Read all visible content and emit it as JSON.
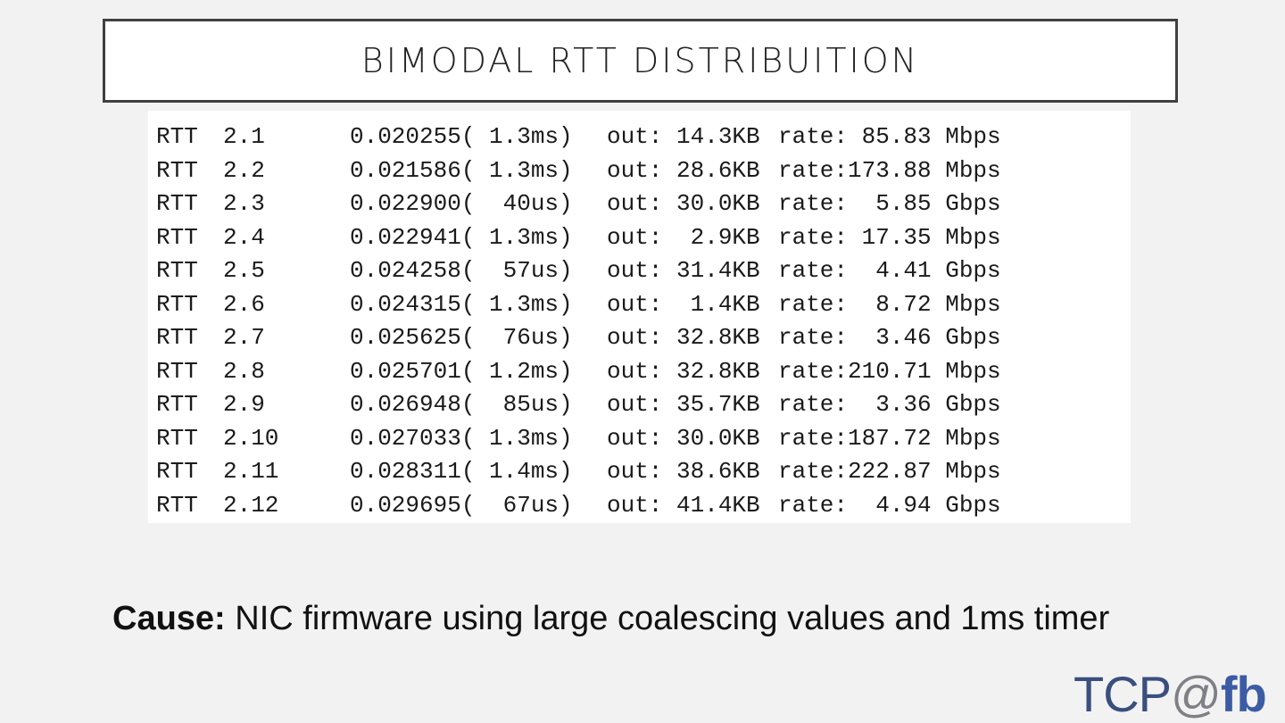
{
  "title": "BIMODAL RTT DISTRIBUITION",
  "rows": [
    [
      "RTT",
      "2.1",
      "0.020255( 1.3ms)",
      "out: 14.3KB",
      "rate: 85.83 Mbps"
    ],
    [
      "RTT",
      "2.2",
      "0.021586( 1.3ms)",
      "out: 28.6KB",
      "rate:173.88 Mbps"
    ],
    [
      "RTT",
      "2.3",
      "0.022900(  40us)",
      "out: 30.0KB",
      "rate:  5.85 Gbps"
    ],
    [
      "RTT",
      "2.4",
      "0.022941( 1.3ms)",
      "out:  2.9KB",
      "rate: 17.35 Mbps"
    ],
    [
      "RTT",
      "2.5",
      "0.024258(  57us)",
      "out: 31.4KB",
      "rate:  4.41 Gbps"
    ],
    [
      "RTT",
      "2.6",
      "0.024315( 1.3ms)",
      "out:  1.4KB",
      "rate:  8.72 Mbps"
    ],
    [
      "RTT",
      "2.7",
      "0.025625(  76us)",
      "out: 32.8KB",
      "rate:  3.46 Gbps"
    ],
    [
      "RTT",
      "2.8",
      "0.025701( 1.2ms)",
      "out: 32.8KB",
      "rate:210.71 Mbps"
    ],
    [
      "RTT",
      "2.9",
      "0.026948(  85us)",
      "out: 35.7KB",
      "rate:  3.36 Gbps"
    ],
    [
      "RTT",
      "2.10",
      "0.027033( 1.3ms)",
      "out: 30.0KB",
      "rate:187.72 Mbps"
    ],
    [
      "RTT",
      "2.11",
      "0.028311( 1.4ms)",
      "out: 38.6KB",
      "rate:222.87 Mbps"
    ],
    [
      "RTT",
      "2.12",
      "0.029695(  67us)",
      "out: 41.4KB",
      "rate:  4.94 Gbps"
    ]
  ],
  "cause": {
    "label": "Cause:",
    "text": " NIC firmware using large coalescing values and 1ms timer"
  },
  "logo": {
    "tcp": "TCP",
    "at": "@",
    "fb": "fb"
  }
}
